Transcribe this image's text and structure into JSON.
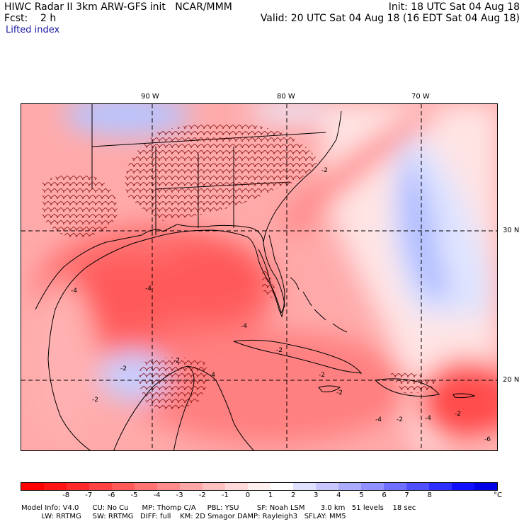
{
  "header": {
    "title": "HIWC Radar II 3km ARW-GFS init   NCAR/MMM",
    "init": "Init: 18 UTC Sat 04 Aug 18",
    "forecast": "Fcst:    2 h",
    "valid": "Valid: 20 UTC Sat 04 Aug 18 (16 EDT Sat 04 Aug 18)",
    "field": "Lifted index"
  },
  "map": {
    "lon_labels": [
      "90 W",
      "80 W",
      "70 W"
    ],
    "lat_labels": [
      "30 N",
      "20 N"
    ],
    "contour_labels": [
      "-2",
      "-4",
      "-4",
      "-2",
      "-2",
      "-2",
      "-4",
      "-2",
      "-2",
      "-4",
      "-2",
      "-2",
      "-4",
      "-4",
      "-2",
      "-6"
    ]
  },
  "colorbar": {
    "ticks": [
      "-8",
      "-7",
      "-6",
      "-5",
      "-4",
      "-3",
      "-2",
      "-1",
      "0",
      "1",
      "2",
      "3",
      "4",
      "5",
      "6",
      "7",
      "8"
    ],
    "unit": "°C",
    "colors": [
      "#ff0000",
      "#ff1414",
      "#ff2a2a",
      "#ff4242",
      "#ff5a5a",
      "#ff7373",
      "#ff8c8c",
      "#ffa6a6",
      "#ffc0c0",
      "#ffd9d9",
      "#fff0f0",
      "#ffffff",
      "#e0e0ff",
      "#c8c8ff",
      "#acacff",
      "#9090ff",
      "#7070ff",
      "#5050ff",
      "#2e2eff",
      "#1010ff",
      "#0000e6"
    ]
  },
  "footer": {
    "line1": "Model Info: V4.0      CU: No Cu      MP: Thomp C/A     PBL: YSU        SF: Noah LSM       3.0 km   51 levels    18 sec",
    "line2": "         LW: RRTMG     SW: RRTMG   DIFF: full    KM: 2D Smagor DAMP: Rayleigh3   SFLAY: MM5"
  },
  "colors": {
    "stable_blue": "#a9b8ff",
    "weak_blue": "#dde4ff",
    "neutral": "#ffe9e9",
    "light_red": "#ffb3b3",
    "moderate_red": "#ff8585",
    "strong_red": "#ff5c5c",
    "coast": "#000000",
    "storm_contours": "#7a0000"
  }
}
